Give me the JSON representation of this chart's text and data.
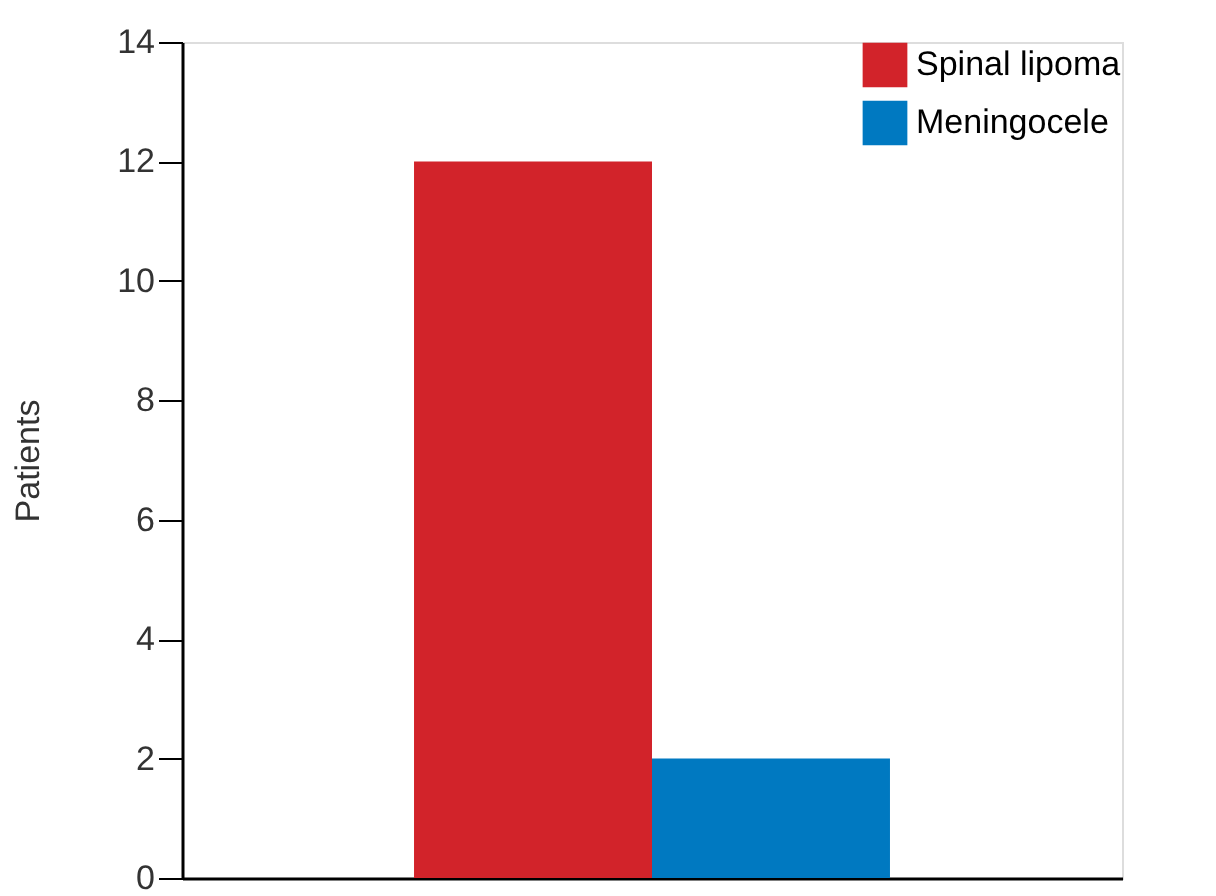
{
  "chart_data": {
    "type": "bar",
    "categories": [
      null
    ],
    "ylabel": "Patients",
    "ylim": [
      0,
      14
    ],
    "yticks": [
      0,
      2,
      4,
      6,
      8,
      10,
      12,
      14
    ],
    "tick_labels": "y",
    "grid": false,
    "legend": "top right",
    "series": [
      {
        "name": "Spinal lipoma",
        "color": "#d2232a",
        "values": [
          12
        ]
      },
      {
        "name": "Meningocele",
        "color": "#0079c1",
        "values": [
          2
        ]
      }
    ]
  }
}
